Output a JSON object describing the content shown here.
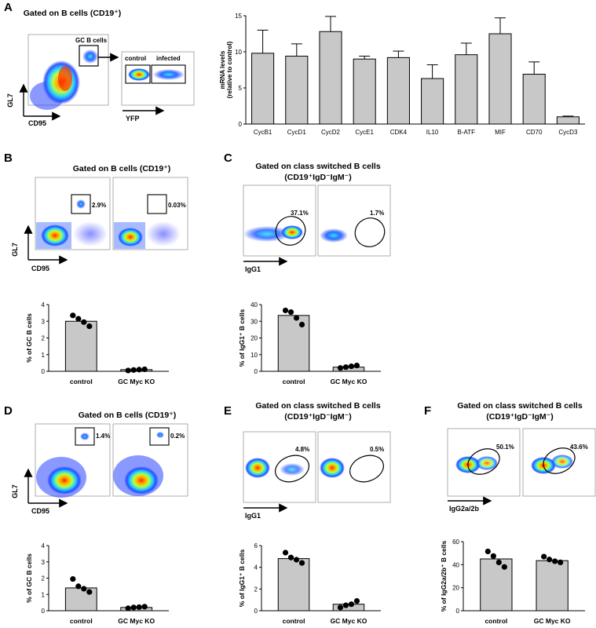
{
  "panels": {
    "A": {
      "letter": "A",
      "gate_title": "Gated on B cells (CD19⁺)",
      "gc_label": "GC B cells",
      "control_label": "control",
      "infected_label": "infected",
      "y_axis": "GL7",
      "x_axis": "CD95",
      "second_x_axis": "YFP"
    },
    "B": {
      "letter": "B",
      "gate_title": "Gated on B cells (CD19⁺)",
      "y_axis": "GL7",
      "x_axis": "CD95",
      "pct_control": "2.9%",
      "pct_ko": "0.03%"
    },
    "C": {
      "letter": "C",
      "gate_title_1": "Gated on class switched B cells",
      "gate_title_2": "(CD19⁺IgD⁻IgM⁻)",
      "x_axis": "IgG1",
      "pct_control": "37.1%",
      "pct_ko": "1.7%"
    },
    "D": {
      "letter": "D",
      "gate_title": "Gated on B cells (CD19⁺)",
      "y_axis": "GL7",
      "x_axis": "CD95",
      "pct_control": "1.4%",
      "pct_ko": "0.2%"
    },
    "E": {
      "letter": "E",
      "gate_title_1": "Gated on class switched B cells",
      "gate_title_2": "(CD19⁺IgD⁻IgM⁻)",
      "x_axis": "IgG1",
      "pct_control": "4.8%",
      "pct_ko": "0.5%"
    },
    "F": {
      "letter": "F",
      "gate_title_1": "Gated on class switched B cells",
      "gate_title_2": "(CD19⁺IgD⁻IgM⁻)",
      "x_axis": "IgG2a/2b",
      "pct_control": "50.1%",
      "pct_ko": "43.6%"
    }
  },
  "chart_data": [
    {
      "id": "A-mrna",
      "type": "bar",
      "ylabel_1": "mRNA levels",
      "ylabel_2": "(relative to control)",
      "categories": [
        "CycB1",
        "CycD1",
        "CycD2",
        "CycE1",
        "CDK4",
        "IL10",
        "B-ATF",
        "MIF",
        "CD70",
        "CycD3"
      ],
      "values": [
        9.8,
        9.4,
        12.8,
        9.0,
        9.2,
        6.3,
        9.6,
        12.5,
        6.9,
        1.0
      ],
      "errors": [
        3.2,
        1.7,
        2.1,
        0.4,
        0.9,
        1.9,
        1.6,
        2.2,
        1.7,
        0.1
      ],
      "ylim": [
        0,
        15
      ],
      "yticks": [
        0,
        5,
        10,
        15
      ]
    },
    {
      "id": "B-bar",
      "type": "bar",
      "ylabel": "% of GC B cells",
      "categories": [
        "control",
        "GC Myc KO"
      ],
      "values": [
        3.0,
        0.1
      ],
      "points": [
        [
          3.35,
          3.15,
          2.95,
          2.7
        ],
        [
          0.05,
          0.08,
          0.1,
          0.12
        ]
      ],
      "ylim": [
        0,
        4
      ],
      "yticks": [
        0,
        1,
        2,
        3,
        4
      ]
    },
    {
      "id": "C-bar",
      "type": "bar",
      "ylabel": "% of IgG1⁺ B cells",
      "categories": [
        "control",
        "GC Myc KO"
      ],
      "values": [
        33.5,
        2.5
      ],
      "points": [
        [
          36.5,
          35.5,
          32.0,
          28.0
        ],
        [
          2.0,
          2.5,
          3.0,
          3.5
        ]
      ],
      "ylim": [
        0,
        40
      ],
      "yticks": [
        0,
        10,
        20,
        30,
        40
      ]
    },
    {
      "id": "D-bar",
      "type": "bar",
      "ylabel": "% of GC B cells",
      "categories": [
        "control",
        "GC Myc KO"
      ],
      "values": [
        1.4,
        0.2
      ],
      "points": [
        [
          1.95,
          1.5,
          1.35,
          1.15
        ],
        [
          0.15,
          0.2,
          0.22,
          0.25
        ]
      ],
      "ylim": [
        0,
        4
      ],
      "yticks": [
        0,
        1,
        2,
        3,
        4
      ]
    },
    {
      "id": "E-bar",
      "type": "bar",
      "ylabel": "% of IgG1⁺ B cells",
      "categories": [
        "control",
        "GC Myc KO"
      ],
      "values": [
        4.8,
        0.6
      ],
      "points": [
        [
          5.35,
          4.9,
          4.7,
          4.4
        ],
        [
          0.3,
          0.5,
          0.6,
          0.9
        ]
      ],
      "ylim": [
        0,
        6
      ],
      "yticks": [
        0,
        2,
        4,
        6
      ]
    },
    {
      "id": "F-bar",
      "type": "bar",
      "ylabel": "% of IgG2a/2b⁺ B cells",
      "categories": [
        "control",
        "GC Myc KO"
      ],
      "values": [
        45.0,
        43.5
      ],
      "points": [
        [
          51.5,
          47.5,
          42.0,
          38.0
        ],
        [
          47.0,
          44.5,
          43.0,
          42.0
        ]
      ],
      "ylim": [
        0,
        60
      ],
      "yticks": [
        0,
        20,
        40,
        60
      ]
    }
  ]
}
